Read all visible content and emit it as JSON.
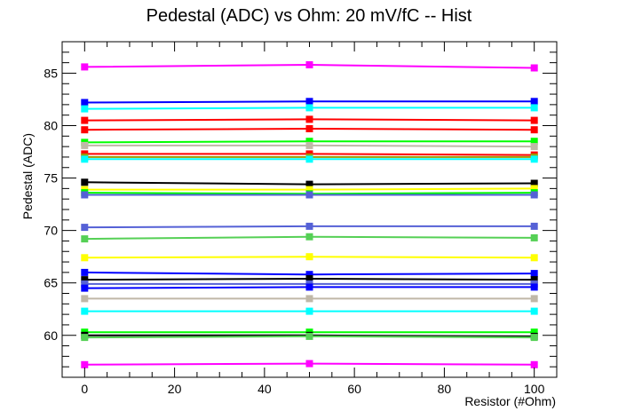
{
  "chart_data": {
    "type": "line",
    "title": "Pedestal (ADC) vs Ohm: 20 mV/fC -- Hist",
    "xlabel": "Resistor (#Ohm)",
    "ylabel": "Pedestal (ADC)",
    "xlim": [
      -5,
      105
    ],
    "ylim": [
      56,
      88
    ],
    "x": [
      0,
      50,
      100
    ],
    "xticks": [
      0,
      20,
      40,
      60,
      80,
      100
    ],
    "yticks": [
      60,
      65,
      70,
      75,
      80,
      85
    ],
    "grid": false,
    "legend": "none",
    "series": [
      {
        "color": "#ff00ff",
        "values": [
          85.6,
          85.8,
          85.5
        ]
      },
      {
        "color": "#0000ff",
        "values": [
          82.2,
          82.3,
          82.3
        ]
      },
      {
        "color": "#00ffff",
        "values": [
          81.6,
          81.7,
          81.7
        ]
      },
      {
        "color": "#ff0000",
        "values": [
          80.5,
          80.6,
          80.5
        ]
      },
      {
        "color": "#ff0000",
        "values": [
          79.6,
          79.7,
          79.6
        ]
      },
      {
        "color": "#00ff00",
        "values": [
          78.4,
          78.5,
          78.5
        ]
      },
      {
        "color": "#c0b8a8",
        "values": [
          78.1,
          78.1,
          78.0
        ]
      },
      {
        "color": "#ff0000",
        "values": [
          77.3,
          77.3,
          77.2
        ]
      },
      {
        "color": "#9a9a00",
        "values": [
          77.0,
          77.0,
          77.0
        ]
      },
      {
        "color": "#00ffff",
        "values": [
          76.8,
          76.8,
          76.8
        ]
      },
      {
        "color": "#000000",
        "values": [
          74.6,
          74.4,
          74.5
        ]
      },
      {
        "color": "#ffff00",
        "values": [
          73.9,
          73.9,
          74.0
        ]
      },
      {
        "color": "#00ff00",
        "values": [
          73.6,
          73.5,
          73.6
        ]
      },
      {
        "color": "#5561d6",
        "values": [
          73.4,
          73.4,
          73.4
        ]
      },
      {
        "color": "#5561d6",
        "values": [
          70.3,
          70.4,
          70.4
        ]
      },
      {
        "color": "#55d055",
        "values": [
          69.2,
          69.4,
          69.3
        ]
      },
      {
        "color": "#ffff00",
        "values": [
          67.4,
          67.5,
          67.4
        ]
      },
      {
        "color": "#0000ff",
        "values": [
          66.0,
          65.8,
          65.9
        ]
      },
      {
        "color": "#000000",
        "values": [
          65.3,
          65.4,
          65.3
        ]
      },
      {
        "color": "#5561d6",
        "values": [
          64.9,
          64.9,
          64.9
        ]
      },
      {
        "color": "#0000ff",
        "values": [
          64.5,
          64.6,
          64.6
        ]
      },
      {
        "color": "#c0b8a8",
        "values": [
          63.5,
          63.5,
          63.5
        ]
      },
      {
        "color": "#00ffff",
        "values": [
          62.3,
          62.3,
          62.3
        ]
      },
      {
        "color": "#00ff00",
        "values": [
          60.3,
          60.3,
          60.3
        ]
      },
      {
        "color": "#000000",
        "values": [
          60.0,
          60.0,
          59.9
        ]
      },
      {
        "color": "#55d055",
        "values": [
          59.8,
          59.9,
          59.8
        ]
      },
      {
        "color": "#ff00ff",
        "values": [
          57.2,
          57.3,
          57.2
        ]
      }
    ]
  }
}
